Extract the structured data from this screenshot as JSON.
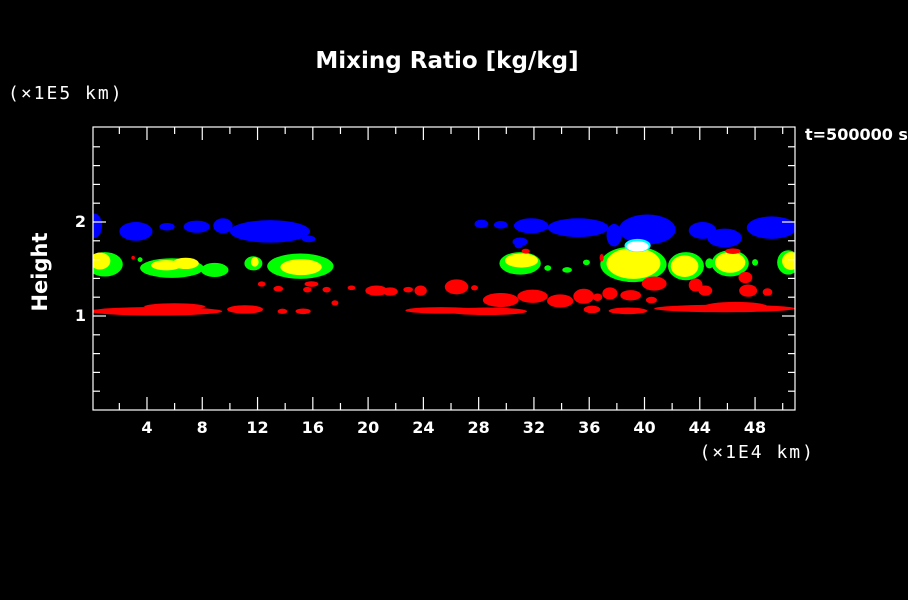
{
  "title": "Mixing Ratio [kg/kg]",
  "labels": {
    "y_axis_unit": "(×1E5 km)",
    "x_axis_unit": "(×1E4 km)",
    "y_axis_title": "Height",
    "time": "t=500000 s"
  },
  "chart_data": {
    "type": "heatmap",
    "subtype": "filled-contour cloud/mixing-ratio field, ellipse-approximated blobs in data units",
    "title": "Mixing Ratio [kg/kg]",
    "xlabel_unit": "(×1E4 km)",
    "ylabel": "Height",
    "ylabel_unit": "(×1E5 km)",
    "annotation": "t=500000 s",
    "background": "#000000",
    "frame_color": "#ffffff",
    "x_range": [
      0,
      50.9
    ],
    "y_range": [
      0,
      3.0
    ],
    "x_tick_labels": [
      4,
      8,
      12,
      16,
      20,
      24,
      28,
      32,
      36,
      40,
      44,
      48
    ],
    "y_tick_labels": [
      1,
      2
    ],
    "axes": {
      "x_minor_step": 2,
      "x_major_step": 4,
      "y_minor_step": 0.2,
      "y_major_step": 1
    },
    "colors": {
      "blue": "#0000ff",
      "cyan": "#00ffff",
      "white": "#ffffff",
      "green": "#00ff00",
      "yellow": "#ffff00",
      "red": "#ff0000"
    },
    "blob_order": [
      "green",
      "yellow",
      "red",
      "blue",
      "cyan",
      "white"
    ],
    "blobs": {
      "blue": [
        [
          0.2,
          1.96,
          0.55,
          0.13
        ],
        [
          3.2,
          1.9,
          1.2,
          0.1
        ],
        [
          5.45,
          1.95,
          0.55,
          0.04
        ],
        [
          7.6,
          1.95,
          0.95,
          0.065
        ],
        [
          9.5,
          1.96,
          0.7,
          0.08
        ],
        [
          12.9,
          1.9,
          2.9,
          0.12
        ],
        [
          15.7,
          1.82,
          0.5,
          0.035
        ],
        [
          28.2,
          1.98,
          0.5,
          0.045
        ],
        [
          29.6,
          1.97,
          0.5,
          0.04
        ],
        [
          31.8,
          1.96,
          1.25,
          0.08
        ],
        [
          30.9,
          1.75,
          0.3,
          0.03
        ],
        [
          31.0,
          1.79,
          0.55,
          0.045
        ],
        [
          35.2,
          1.94,
          2.2,
          0.1
        ],
        [
          37.8,
          1.86,
          0.55,
          0.12
        ],
        [
          40.2,
          1.92,
          2.05,
          0.16
        ],
        [
          44.2,
          1.91,
          1.0,
          0.09
        ],
        [
          45.8,
          1.83,
          1.25,
          0.1
        ],
        [
          49.2,
          1.94,
          1.8,
          0.12
        ]
      ],
      "cyan": [
        [
          39.5,
          1.75,
          0.95,
          0.07
        ]
      ],
      "white": [
        [
          39.5,
          1.74,
          0.8,
          0.055
        ]
      ],
      "green": [
        [
          0.95,
          1.55,
          1.3,
          0.13
        ],
        [
          3.5,
          1.6,
          0.18,
          0.025
        ],
        [
          5.8,
          1.51,
          2.3,
          0.105
        ],
        [
          8.9,
          1.49,
          1.0,
          0.075
        ],
        [
          11.7,
          1.56,
          0.65,
          0.075
        ],
        [
          15.1,
          1.53,
          2.4,
          0.135
        ],
        [
          31.0,
          1.56,
          1.5,
          0.12
        ],
        [
          33.0,
          1.51,
          0.25,
          0.03
        ],
        [
          34.4,
          1.49,
          0.35,
          0.03
        ],
        [
          35.8,
          1.57,
          0.25,
          0.03
        ],
        [
          39.2,
          1.55,
          2.4,
          0.19
        ],
        [
          43.0,
          1.53,
          1.3,
          0.15
        ],
        [
          44.7,
          1.56,
          0.3,
          0.055
        ],
        [
          46.2,
          1.56,
          1.35,
          0.14
        ],
        [
          48.0,
          1.57,
          0.22,
          0.035
        ],
        [
          50.4,
          1.57,
          0.8,
          0.13
        ]
      ],
      "yellow": [
        [
          0.6,
          1.585,
          0.75,
          0.09
        ],
        [
          5.4,
          1.54,
          1.1,
          0.055
        ],
        [
          6.8,
          1.56,
          0.95,
          0.06
        ],
        [
          11.8,
          1.575,
          0.28,
          0.05
        ],
        [
          15.15,
          1.52,
          1.5,
          0.085
        ],
        [
          31.1,
          1.59,
          1.2,
          0.075
        ],
        [
          39.2,
          1.56,
          1.95,
          0.165
        ],
        [
          42.9,
          1.53,
          1.0,
          0.115
        ],
        [
          46.2,
          1.57,
          1.1,
          0.11
        ],
        [
          50.6,
          1.585,
          0.65,
          0.095
        ]
      ],
      "red": [
        [
          4.65,
          1.05,
          4.8,
          0.045
        ],
        [
          6.0,
          1.1,
          2.2,
          0.035
        ],
        [
          11.1,
          1.07,
          1.3,
          0.045
        ],
        [
          13.8,
          1.05,
          0.35,
          0.028
        ],
        [
          15.3,
          1.05,
          0.55,
          0.03
        ],
        [
          25.3,
          1.06,
          2.6,
          0.035
        ],
        [
          28.6,
          1.05,
          2.9,
          0.04
        ],
        [
          36.2,
          1.07,
          0.6,
          0.04
        ],
        [
          38.8,
          1.055,
          1.4,
          0.035
        ],
        [
          45.8,
          1.08,
          5.1,
          0.04
        ],
        [
          46.6,
          1.1,
          2.3,
          0.05
        ],
        [
          12.3,
          1.34,
          0.28,
          0.028
        ],
        [
          13.5,
          1.29,
          0.35,
          0.03
        ],
        [
          15.6,
          1.28,
          0.3,
          0.03
        ],
        [
          15.9,
          1.34,
          0.5,
          0.03
        ],
        [
          17.0,
          1.28,
          0.3,
          0.03
        ],
        [
          17.6,
          1.14,
          0.25,
          0.028
        ],
        [
          18.8,
          1.3,
          0.28,
          0.025
        ],
        [
          20.6,
          1.27,
          0.8,
          0.055
        ],
        [
          21.6,
          1.26,
          0.55,
          0.045
        ],
        [
          22.9,
          1.28,
          0.35,
          0.03
        ],
        [
          23.8,
          1.27,
          0.45,
          0.055
        ],
        [
          26.4,
          1.31,
          0.85,
          0.08
        ],
        [
          27.7,
          1.3,
          0.25,
          0.028
        ],
        [
          29.6,
          1.17,
          1.3,
          0.075
        ],
        [
          31.9,
          1.21,
          1.1,
          0.07
        ],
        [
          33.9,
          1.16,
          0.95,
          0.07
        ],
        [
          35.6,
          1.21,
          0.75,
          0.08
        ],
        [
          36.6,
          1.2,
          0.35,
          0.04
        ],
        [
          37.5,
          1.24,
          0.55,
          0.065
        ],
        [
          39.0,
          1.22,
          0.75,
          0.055
        ],
        [
          40.5,
          1.17,
          0.4,
          0.035
        ],
        [
          44.4,
          1.27,
          0.5,
          0.055
        ],
        [
          47.5,
          1.27,
          0.65,
          0.065
        ],
        [
          48.9,
          1.255,
          0.35,
          0.04
        ],
        [
          31.4,
          1.69,
          0.3,
          0.025
        ],
        [
          36.9,
          1.62,
          0.15,
          0.04
        ],
        [
          40.7,
          1.345,
          0.9,
          0.075
        ],
        [
          43.7,
          1.33,
          0.5,
          0.07
        ],
        [
          46.4,
          1.69,
          0.55,
          0.03
        ],
        [
          47.3,
          1.41,
          0.5,
          0.06
        ],
        [
          3.0,
          1.62,
          0.13,
          0.02
        ]
      ]
    }
  }
}
